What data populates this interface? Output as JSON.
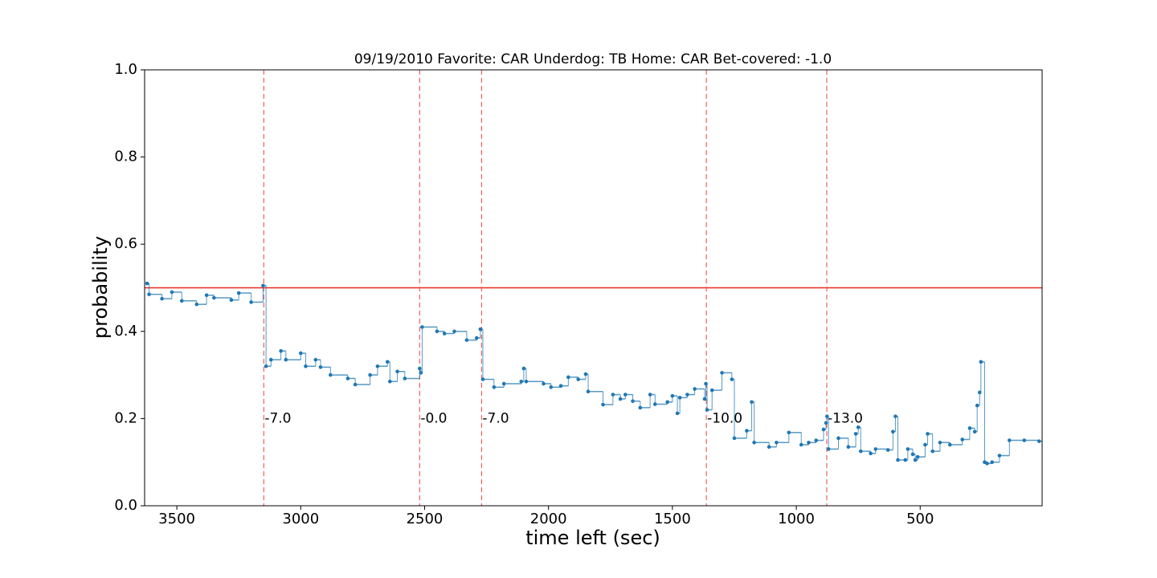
{
  "chart_data": {
    "type": "step",
    "title": "09/19/2010 Favorite: CAR Underdog: TB Home: CAR Bet-covered: -1.0",
    "x_label": "time left (sec)",
    "y_label": "probability",
    "xlim": [
      3630,
      8
    ],
    "ylim": [
      0,
      1
    ],
    "xticks": [
      3500,
      3000,
      2500,
      2000,
      1500,
      1000,
      500
    ],
    "yticks": [
      {
        "value": 0,
        "label": "0.0"
      },
      {
        "value": 0.2,
        "label": "0.2"
      },
      {
        "value": 0.4,
        "label": "0.4"
      },
      {
        "value": 0.6,
        "label": "0.6"
      },
      {
        "value": 0.8,
        "label": "0.8"
      },
      {
        "value": 1,
        "label": "1.0"
      }
    ],
    "reference_line": {
      "value": 0.5,
      "color": "#e8281e"
    },
    "events": [
      {
        "x": 3149,
        "label": "-7.0"
      },
      {
        "x": 2520,
        "label": "-0.0"
      },
      {
        "x": 2270,
        "label": "-7.0"
      },
      {
        "x": 1363,
        "label": "-10.0"
      },
      {
        "x": 877,
        "label": "-13.0"
      }
    ],
    "event_label_y": 0.2,
    "event_color": "#f0605a",
    "series": [
      {
        "color": "#1f77b4",
        "x": [
          3620,
          3612,
          3560,
          3520,
          3480,
          3420,
          3380,
          3350,
          3280,
          3250,
          3200,
          3152,
          3140,
          3120,
          3080,
          3060,
          3000,
          2980,
          2940,
          2920,
          2880,
          2810,
          2780,
          2720,
          2690,
          2650,
          2640,
          2610,
          2580,
          2520,
          2515,
          2510,
          2450,
          2420,
          2380,
          2330,
          2290,
          2275,
          2265,
          2220,
          2180,
          2110,
          2100,
          2090,
          2020,
          1990,
          1950,
          1920,
          1880,
          1850,
          1840,
          1780,
          1740,
          1710,
          1690,
          1660,
          1630,
          1590,
          1570,
          1520,
          1500,
          1480,
          1470,
          1440,
          1410,
          1370,
          1365,
          1360,
          1340,
          1300,
          1260,
          1250,
          1200,
          1180,
          1170,
          1110,
          1080,
          1030,
          980,
          950,
          920,
          890,
          880,
          876,
          870,
          830,
          790,
          760,
          750,
          740,
          700,
          680,
          630,
          610,
          600,
          590,
          560,
          550,
          530,
          520,
          510,
          480,
          470,
          450,
          420,
          380,
          330,
          300,
          280,
          270,
          260,
          255,
          240,
          230,
          210,
          180,
          140,
          80,
          20
        ],
        "values": [
          0.51,
          0.485,
          0.475,
          0.49,
          0.47,
          0.462,
          0.483,
          0.477,
          0.472,
          0.488,
          0.467,
          0.505,
          0.32,
          0.335,
          0.355,
          0.335,
          0.35,
          0.32,
          0.335,
          0.318,
          0.3,
          0.292,
          0.278,
          0.3,
          0.32,
          0.33,
          0.285,
          0.308,
          0.292,
          0.315,
          0.305,
          0.41,
          0.4,
          0.395,
          0.4,
          0.38,
          0.385,
          0.405,
          0.29,
          0.272,
          0.28,
          0.285,
          0.315,
          0.285,
          0.28,
          0.272,
          0.275,
          0.295,
          0.29,
          0.302,
          0.262,
          0.232,
          0.255,
          0.245,
          0.255,
          0.24,
          0.225,
          0.255,
          0.233,
          0.238,
          0.252,
          0.212,
          0.248,
          0.255,
          0.268,
          0.245,
          0.28,
          0.22,
          0.265,
          0.305,
          0.29,
          0.155,
          0.172,
          0.238,
          0.145,
          0.135,
          0.145,
          0.168,
          0.14,
          0.145,
          0.15,
          0.175,
          0.19,
          0.205,
          0.13,
          0.155,
          0.135,
          0.165,
          0.18,
          0.125,
          0.12,
          0.13,
          0.128,
          0.17,
          0.205,
          0.105,
          0.105,
          0.13,
          0.118,
          0.105,
          0.112,
          0.14,
          0.165,
          0.125,
          0.145,
          0.14,
          0.152,
          0.178,
          0.17,
          0.23,
          0.26,
          0.33,
          0.1,
          0.097,
          0.1,
          0.115,
          0.15,
          0.15,
          0.148
        ]
      }
    ]
  }
}
